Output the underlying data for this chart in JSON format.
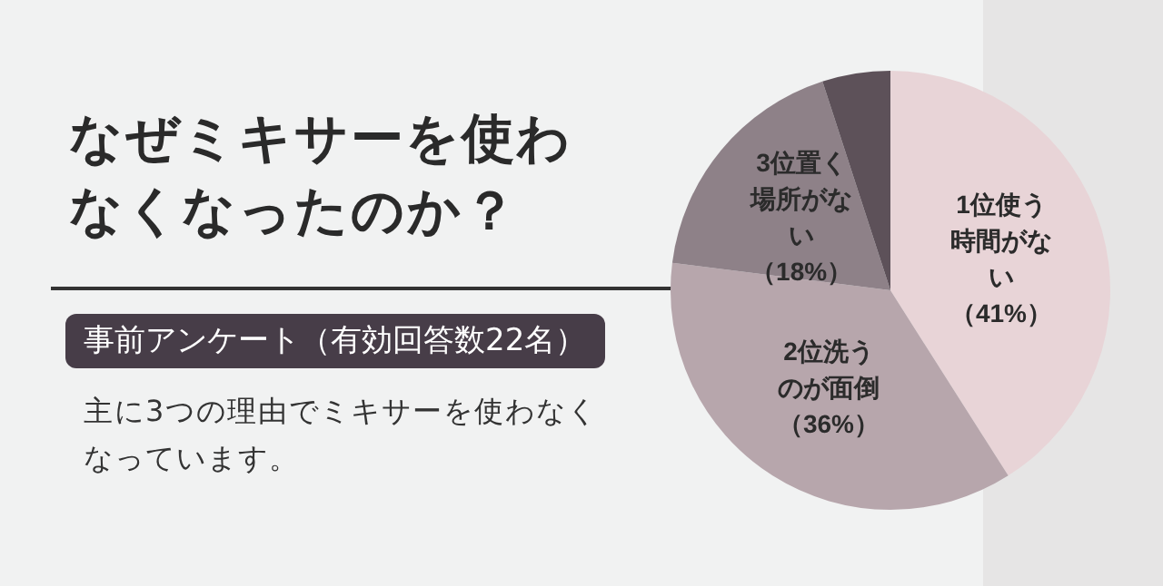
{
  "chart_data": {
    "type": "pie",
    "title": "なぜミキサーを使わなくなったのか？",
    "subtitle": "事前アンケート（有効回答数22名）",
    "annotations": [
      "主に3つの理由でミキサーを使わなくなっています。"
    ],
    "categories": [
      "1位使う時間がない",
      "2位洗うのが面倒",
      "3位置く場所がない",
      null
    ],
    "values": [
      41,
      36,
      18,
      5
    ],
    "value_labels": [
      "（41%）",
      "（36%）",
      "（18%）",
      null
    ],
    "colors": [
      "#e8d4d7",
      "#b7a6ac",
      "#8e8188",
      "#5d5159"
    ],
    "legend": false
  }
}
